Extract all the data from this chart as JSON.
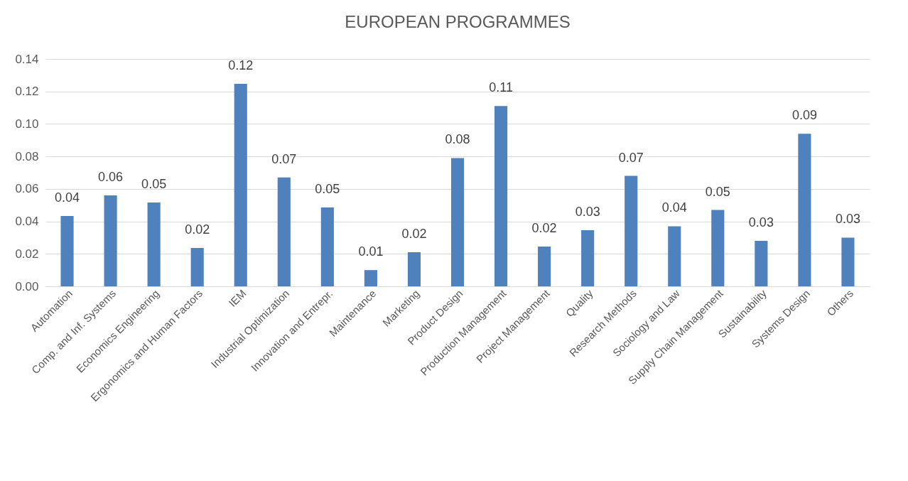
{
  "chart_data": {
    "type": "bar",
    "title": "EUROPEAN PROGRAMMES",
    "categories": [
      "Automation",
      "Comp. and Inf. Systems",
      "Economics Engineering",
      "Ergonomics and Human Factors",
      "IEM",
      "Industrial Optimization",
      "Innovation and Entrepr.",
      "Maintenance",
      "Marketing",
      "Product Design",
      "Production Management",
      "Project Management",
      "Quality",
      "Research Methods",
      "Sociology and Law",
      "Supply Chain Management",
      "Sustainability",
      "Systems Design",
      "Others"
    ],
    "values": [
      0.0433,
      0.056,
      0.0516,
      0.0236,
      0.1247,
      0.067,
      0.0486,
      0.01,
      0.021,
      0.079,
      0.111,
      0.0245,
      0.0346,
      0.068,
      0.037,
      0.047,
      0.028,
      0.094,
      0.03
    ],
    "value_labels": [
      "0.04",
      "0.06",
      "0.05",
      "0.02",
      "0.12",
      "0.07",
      "0.05",
      "0.01",
      "0.02",
      "0.08",
      "0.11",
      "0.02",
      "0.03",
      "0.07",
      "0.04",
      "0.05",
      "0.03",
      "0.09",
      "0.03"
    ],
    "color": "#4f81bd",
    "ylim": [
      0,
      0.14
    ],
    "yticks": [
      {
        "value": 0,
        "label": "0.00"
      },
      0.02,
      0.04,
      0.06,
      0.08,
      {
        "value": 0.1,
        "label": "0.10"
      },
      0.12,
      0.14
    ],
    "grid": "y"
  }
}
